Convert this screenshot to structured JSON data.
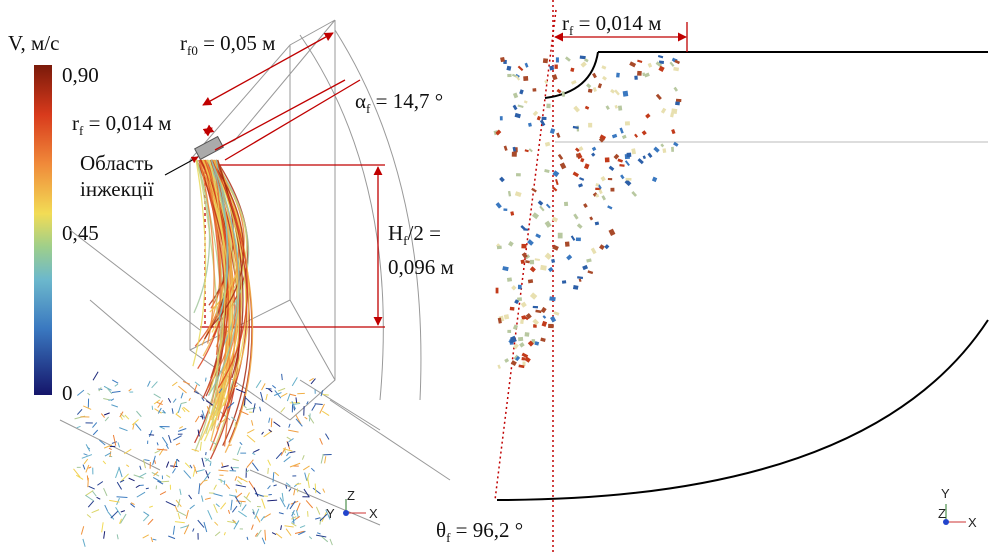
{
  "left_panel": {
    "colorbar": {
      "title": "V, м/с",
      "ticks": [
        "0,90",
        "0,45",
        "0"
      ]
    },
    "r_f0": {
      "symbol": "r",
      "subscript": "f0",
      "text": " = 0,05 м"
    },
    "r_f": {
      "symbol": "r",
      "subscript": "f",
      "text": " = 0,014 м"
    },
    "alpha_f": {
      "symbol": "α",
      "subscript": "f",
      "text": " = 14,7 °"
    },
    "injection_region": [
      "Область",
      "інжекції"
    ],
    "h_f": {
      "symbol": "H",
      "subscript": "f",
      "text": "/2 =",
      "value": "0,096 м"
    },
    "axes": [
      "Y",
      "Z",
      "X"
    ]
  },
  "right_panel": {
    "r_f": {
      "symbol": "r",
      "subscript": "f",
      "text": " = 0,014 м"
    },
    "theta_f": {
      "symbol": "θ",
      "subscript": "f",
      "text": " = 96,2 °"
    },
    "axes": [
      "Y",
      "Z",
      "X"
    ]
  }
}
